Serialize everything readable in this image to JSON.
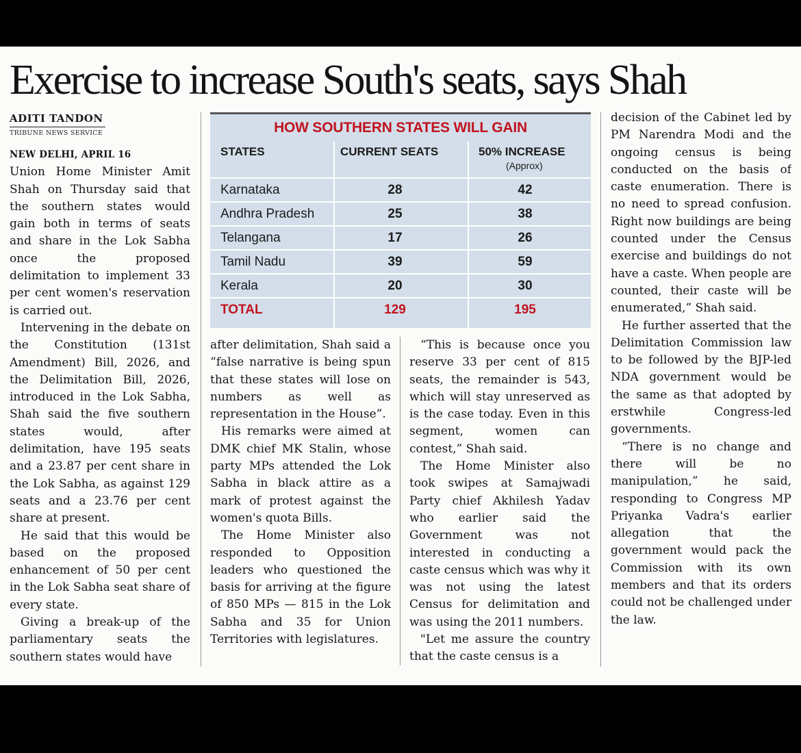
{
  "headline": "Exercise to increase South's seats, says Shah",
  "byline": {
    "author": "ADITI TANDON",
    "service": "TRIBUNE NEWS SERVICE"
  },
  "dateline": "NEW DELHI, APRIL 16",
  "table": {
    "title": "HOW SOUTHERN STATES WILL GAIN",
    "headers": [
      "STATES",
      "CURRENT SEATS",
      "50% INCREASE"
    ],
    "header_note": "(Approx)",
    "rows": [
      [
        "Karnataka",
        "28",
        "42"
      ],
      [
        "Andhra Pradesh",
        "25",
        "38"
      ],
      [
        "Telangana",
        "17",
        "26"
      ],
      [
        "Tamil Nadu",
        "39",
        "59"
      ],
      [
        "Kerala",
        "20",
        "30"
      ]
    ],
    "total": [
      "TOTAL",
      "129",
      "195"
    ],
    "accent_color": "#c0141e",
    "background_color": "#d3deea"
  },
  "col1": {
    "p1": "Union Home Minister Amit Shah on Thursday said that the southern states would gain both in terms of seats and share in the Lok Sabha once the proposed delimitation to implement 33 per cent women's reservation is carried out.",
    "p2": "Intervening in the debate on the Constitution (131st Amendment) Bill, 2026, and the Delimitation Bill, 2026, introduced in the Lok Sabha, Shah said the five southern states would, after delimitation, have 195 seats and a 23.87 per cent share in the Lok Sabha, as against 129 seats and a 23.76 per cent share at present.",
    "p3": "He said that this would be based on the proposed enhancement of 50 per cent in the Lok Sabha seat share of every state.",
    "p4": "Giving a break-up of the parliamentary seats the southern states would have"
  },
  "col2": {
    "p1": "after delimitation, Shah said a “false narrative is being spun that these states will lose on numbers as well as representation in the House”.",
    "p2": "His remarks were aimed at DMK chief MK Stalin, whose party MPs attended the Lok Sabha in black attire as a mark of protest against the women's quota Bills.",
    "p3": "The Home Minister also responded to Opposition leaders who questioned the basis for arriving at the figure of 850 MPs — 815 in the Lok Sabha and 35 for Union Territories with legislatures."
  },
  "col3": {
    "p1": "“This is because once you reserve 33 per cent of 815 seats, the remainder is 543, which will stay unreserved as is the case today. Even in this segment, women can contest,” Shah said.",
    "p2": "The Home Minister also took swipes at Samajwadi Party chief Akhilesh Yadav who earlier said the Government was not interested in conducting a caste census which was why it was not using the latest Census for delimitation and was using the 2011 numbers.",
    "p3": "\"Let me assure the country that the caste census is a"
  },
  "col4": {
    "p1": "decision of the Cabinet led by PM Narendra Modi and the ongoing census is being conducted on the basis of caste enumeration. There is no need to spread confusion. Right now buildings are being counted under the Census exercise and buildings do not have a caste. When people are counted, their caste will be enumerated,” Shah said.",
    "p2": "He further asserted that the Delimitation Commission law to be followed by the BJP-led NDA government would be the same as that adopted by erstwhile Congress-led governments.",
    "p3": "“There is no change and there will be no manipulation,” he said, responding to Congress MP Priyanka Vadra's earlier allegation that the government would pack the Commission with its own members and that its orders could not be challenged under the law."
  }
}
